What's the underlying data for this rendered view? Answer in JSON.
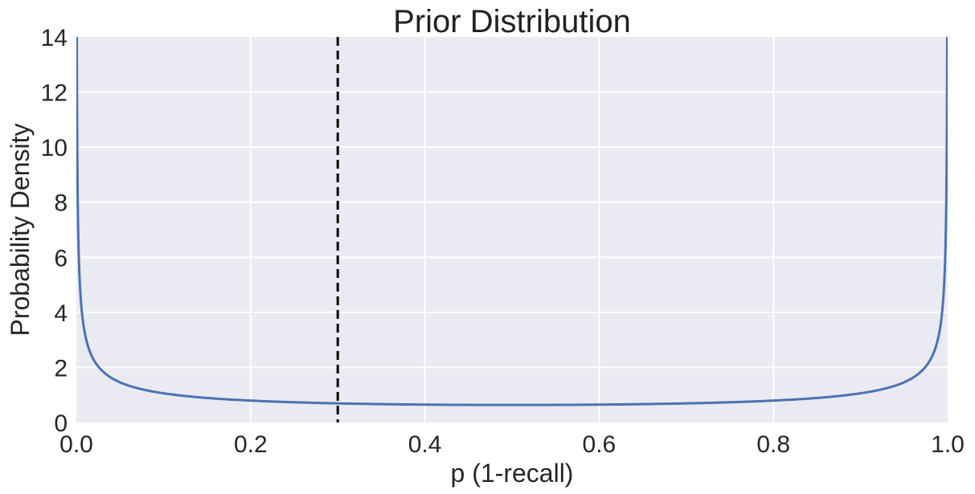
{
  "chart_data": {
    "type": "line",
    "title": "Prior Distribution",
    "xlabel": "p (1-recall)",
    "ylabel": "Probability Density",
    "xlim": [
      0.0,
      1.0
    ],
    "ylim": [
      0,
      14
    ],
    "xticks": [
      "0.0",
      "0.2",
      "0.4",
      "0.6",
      "0.8",
      "1.0"
    ],
    "yticks": [
      "0",
      "2",
      "4",
      "6",
      "8",
      "10",
      "12",
      "14"
    ],
    "grid": true,
    "legend": "none",
    "series": [
      {
        "color": "#4c72b0",
        "style": "solid",
        "distribution": "Beta(0.5, 0.5)"
      }
    ],
    "reference_lines": [
      {
        "orientation": "vertical",
        "x": 0.3,
        "color": "#000000",
        "style": "dashed"
      }
    ],
    "colors": {
      "plot_background": "#eaeaf2",
      "gridline": "#ffffff",
      "text": "#262626"
    }
  }
}
